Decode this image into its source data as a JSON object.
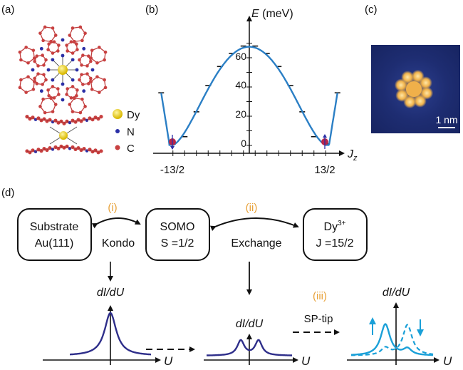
{
  "panels": {
    "a": "(a)",
    "b": "(b)",
    "c": "(c)",
    "d": "(d)"
  },
  "molecule_legend": [
    {
      "label": "Dy",
      "color": "#f2d200"
    },
    {
      "label": "N",
      "color": "#2a2fa6"
    },
    {
      "label": "C",
      "color": "#c84040"
    }
  ],
  "energy_plot": {
    "y_title_var": "E",
    "y_title_unit": " (meV)",
    "y_ticks": [
      "0",
      "20",
      "40",
      "60"
    ],
    "x_title": "J",
    "x_title_sub": "z",
    "x_tick_left": "-13/2",
    "x_tick_right": "13/2",
    "curve_color": "#2b7fc5",
    "marker_color": "#b8264a"
  },
  "stm": {
    "scale_label": "1 nm"
  },
  "diagram": {
    "step_i": "(i)",
    "step_ii": "(ii)",
    "step_iii": "(iii)",
    "substrate_line1": "Substrate",
    "substrate_line2": "Au(111)",
    "somo_line1": "SOMO",
    "somo_line2": "S =1/2",
    "dy_base": "Dy",
    "dy_sup": "3+",
    "dy_line2": "J =15/2",
    "kondo": "Kondo",
    "exchange": "Exchange",
    "sp_tip": "SP-tip",
    "didu": "dI/dU",
    "u_label": "U",
    "spectrum_color": "#2e2e8a",
    "sp_color": "#1aa0d8"
  }
}
